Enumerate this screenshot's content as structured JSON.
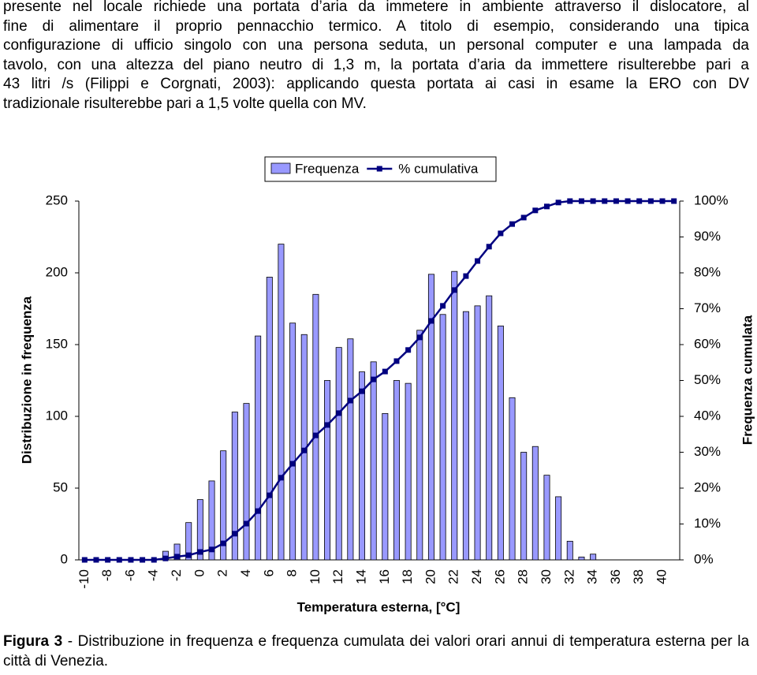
{
  "text_lines": [
    "presente nel locale richiede una portata d’aria da immetere in ambiente attraverso il dislocatore, al",
    "fine di alimentare il proprio pennacchio termico. A titolo di esempio, considerando una tipica",
    "configurazione di ufficio singolo con una persona seduta, un personal computer e una lampada da",
    "tavolo, con una altezza del piano neutro di 1,3 m, la portata d’aria da immettere risulterebbe pari a",
    "43 litri /s (Filippi e Corgnati, 2003): applicando questa portata ai casi in esame la ERO con DV",
    "tradizionale risulterebbe pari a 1,5 volte quella con MV."
  ],
  "chart_data": {
    "type": "bar",
    "x_label": "Temperatura esterna, [°C]",
    "y_label": "Distribuzione in frequenza",
    "y2_label": "Frequenza cumulata",
    "categories": [
      -10,
      null,
      -8,
      null,
      -6,
      null,
      -4,
      null,
      -2,
      null,
      0,
      null,
      2,
      null,
      4,
      null,
      6,
      null,
      8,
      null,
      10,
      null,
      12,
      null,
      14,
      null,
      16,
      null,
      18,
      null,
      20,
      null,
      22,
      null,
      24,
      null,
      26,
      null,
      28,
      null,
      30,
      null,
      32,
      null,
      34,
      null,
      36,
      null,
      38,
      null,
      40,
      null
    ],
    "series": [
      {
        "name": "Frequenza",
        "type": "bar",
        "color": "#9999ff",
        "values": [
          0,
          0,
          0,
          0,
          0,
          0,
          0,
          6,
          11,
          26,
          42,
          55,
          76,
          103,
          109,
          156,
          197,
          220,
          165,
          157,
          185,
          125,
          148,
          154,
          131,
          138,
          102,
          125,
          123,
          160,
          199,
          171,
          201,
          173,
          177,
          184,
          163,
          113,
          75,
          79,
          59,
          44,
          13,
          2,
          4,
          0,
          0,
          0,
          0,
          0,
          0,
          0
        ]
      },
      {
        "name": "% cumulativa",
        "type": "line",
        "axis": "y2",
        "color": "#000080",
        "values": [
          0,
          0,
          0,
          0,
          0,
          0,
          0,
          0.4,
          0.9,
          1.3,
          2.2,
          2.9,
          4.6,
          7.3,
          10.1,
          13.6,
          18,
          22.9,
          26.8,
          30.5,
          34.7,
          37.6,
          40.9,
          44.4,
          47,
          50.3,
          52.5,
          55.4,
          58.5,
          62,
          66.6,
          70.8,
          75.2,
          79.1,
          83.3,
          87.3,
          91,
          93.6,
          95.4,
          97.4,
          98.5,
          99.6,
          100,
          100,
          100,
          100,
          100,
          100,
          100,
          100,
          100,
          100
        ]
      }
    ],
    "ylim": [
      0,
      250
    ],
    "yticks": [
      0,
      50,
      100,
      150,
      200,
      250
    ],
    "y2lim": [
      0,
      100
    ],
    "y2ticks": [
      {
        "value": 0,
        "label": "0%"
      },
      {
        "value": 10,
        "label": "10%"
      },
      {
        "value": 20,
        "label": "20%"
      },
      {
        "value": 30,
        "label": "30%"
      },
      {
        "value": 40,
        "label": "40%"
      },
      {
        "value": 50,
        "label": "50%"
      },
      {
        "value": 60,
        "label": "60%"
      },
      {
        "value": 70,
        "label": "70%"
      },
      {
        "value": 80,
        "label": "80%"
      },
      {
        "value": 90,
        "label": "90%"
      },
      {
        "value": 100,
        "label": "100%"
      }
    ],
    "legend": "top"
  },
  "caption": {
    "label": "Figura 3",
    "text": " - Distribuzione in frequenza e frequenza cumulata dei valori orari annui di temperatura esterna per la città di Venezia."
  }
}
